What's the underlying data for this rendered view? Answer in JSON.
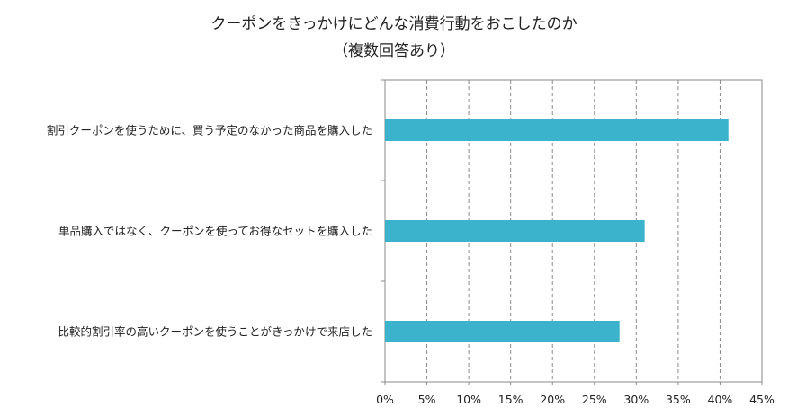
{
  "chart_data": {
    "type": "bar",
    "orientation": "horizontal",
    "title": "クーポンをきっかけにどんな消費行動をおこしたのか",
    "subtitle": "（複数回答あり）",
    "categories": [
      "割引クーポンを使うために、買う予定のなかった商品を購入した",
      "単品購入ではなく、クーポンを使ってお得なセットを購入した",
      "比較的割引率の高いクーポンを使うことがきっかけで来店した"
    ],
    "values": [
      41,
      31,
      28
    ],
    "xlim": [
      0,
      45
    ],
    "xticks": [
      0,
      5,
      10,
      15,
      20,
      25,
      30,
      35,
      40,
      45
    ],
    "xtick_labels": [
      "0%",
      "5%",
      "10%",
      "15%",
      "20%",
      "25%",
      "30%",
      "35%",
      "40%",
      "45%"
    ],
    "grid": true,
    "bar_color": "#3bb3cc",
    "legend": "none"
  }
}
